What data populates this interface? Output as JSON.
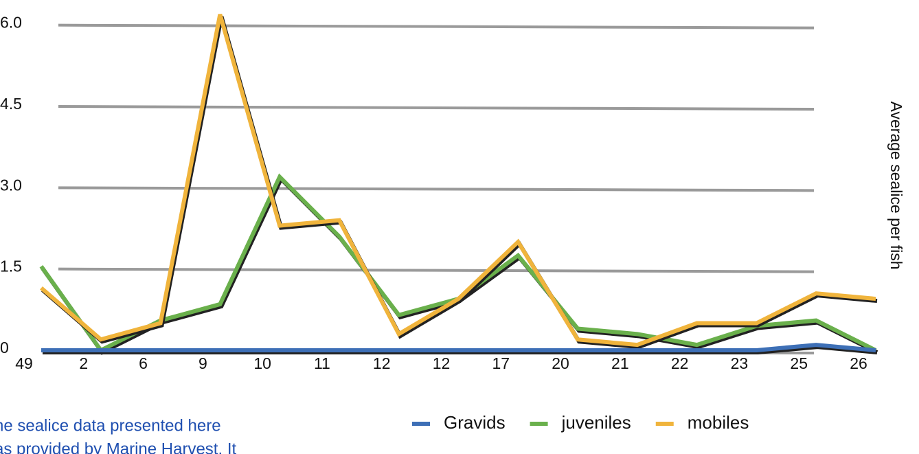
{
  "chart_data": {
    "type": "line",
    "y_axis_label": "Average sealice per fish",
    "categories": [
      "49",
      "2",
      "6",
      "9",
      "10",
      "11",
      "12",
      "12",
      "17",
      "20",
      "21",
      "22",
      "23",
      "25",
      "26"
    ],
    "series": [
      {
        "name": "Gravids",
        "color": "#3d6fb6",
        "values": [
          0,
          0,
          0,
          0,
          0,
          0,
          0,
          0,
          0,
          0,
          0,
          0,
          0,
          0.1,
          0
        ]
      },
      {
        "name": "juveniles",
        "color": "#6ab04c",
        "values": [
          1.55,
          0,
          0.55,
          0.85,
          3.2,
          2.1,
          0.65,
          0.95,
          1.75,
          0.4,
          0.3,
          0.1,
          0.45,
          0.55,
          0
        ]
      },
      {
        "name": "mobiles",
        "color": "#f0b43c",
        "values": [
          1.15,
          0.2,
          0.5,
          6.2,
          2.3,
          2.4,
          0.3,
          0.95,
          2.0,
          0.2,
          0.1,
          0.5,
          0.5,
          1.05,
          0.95
        ]
      }
    ],
    "ylim": [
      0,
      6.3
    ],
    "yticks": [
      0,
      1.5,
      {
        "value": 3,
        "label": "3.0"
      },
      4.5,
      {
        "value": 6,
        "label": "6.0"
      }
    ],
    "grid": true,
    "note": [
      "he sealice data presented here",
      "as provided by Marine Harvest. It"
    ]
  }
}
